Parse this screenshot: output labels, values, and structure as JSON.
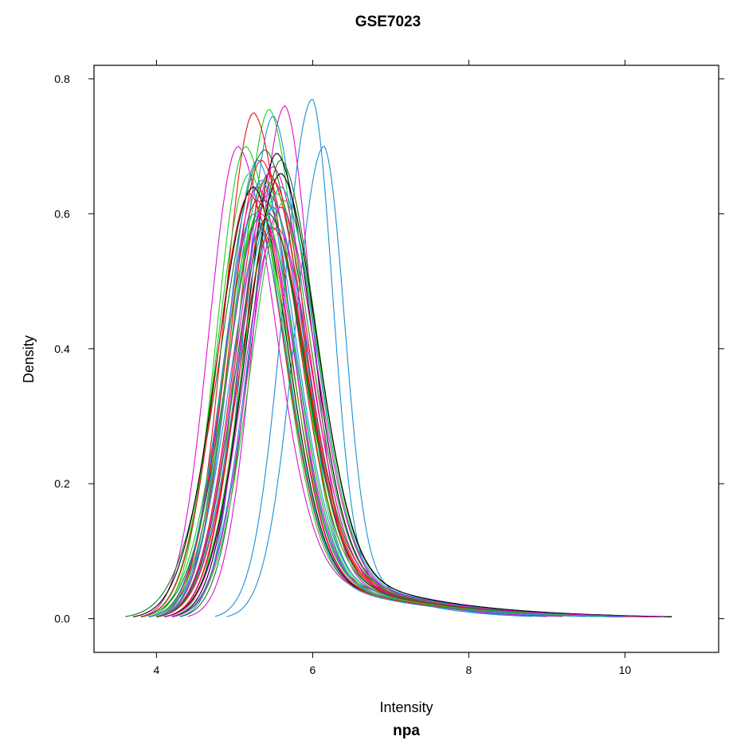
{
  "chart_data": {
    "type": "line",
    "title": "GSE7023",
    "xlabel": "Intensity",
    "ylabel": "Density",
    "sublabel": "npa",
    "xlim": [
      3.2,
      11.2
    ],
    "ylim": [
      -0.05,
      0.82
    ],
    "x_ticks": [
      4,
      6,
      8,
      10
    ],
    "x_tick_labels": [
      "4",
      "6",
      "8",
      "10"
    ],
    "y_ticks": [
      0.0,
      0.2,
      0.4,
      0.6,
      0.8
    ],
    "y_tick_labels": [
      "0.0",
      "0.2",
      "0.4",
      "0.6",
      "0.8"
    ],
    "grid": false,
    "legend": "none",
    "density_series": [
      {
        "color": "#1f8fd6",
        "mode": 6.0,
        "peak": 0.77,
        "start": 4.75,
        "end": 8.8
      },
      {
        "color": "#1f8fd6",
        "mode": 6.15,
        "peak": 0.7,
        "start": 4.9,
        "end": 9.0
      },
      {
        "color": "#e010d0",
        "mode": 5.65,
        "peak": 0.76,
        "start": 4.4,
        "end": 9.2
      },
      {
        "color": "#1f8fd6",
        "mode": 5.5,
        "peak": 0.745,
        "start": 4.3,
        "end": 9.5
      },
      {
        "color": "#22cc22",
        "mode": 5.45,
        "peak": 0.755,
        "start": 4.2,
        "end": 9.6
      },
      {
        "color": "#ee1111",
        "mode": 5.25,
        "peak": 0.75,
        "start": 4.0,
        "end": 10.0
      },
      {
        "color": "#e010d0",
        "mode": 5.05,
        "peak": 0.7,
        "start": 3.8,
        "end": 10.2
      },
      {
        "color": "#22cc22",
        "mode": 5.15,
        "peak": 0.7,
        "start": 3.9,
        "end": 10.0
      },
      {
        "color": "#ee1111",
        "mode": 5.35,
        "peak": 0.68,
        "start": 4.0,
        "end": 10.4
      },
      {
        "color": "#117722",
        "mode": 5.4,
        "peak": 0.695,
        "start": 3.6,
        "end": 10.6
      },
      {
        "color": "#1f8fd6",
        "mode": 5.3,
        "peak": 0.68,
        "start": 4.0,
        "end": 10.0
      },
      {
        "color": "#000000",
        "mode": 5.55,
        "peak": 0.69,
        "start": 4.2,
        "end": 10.3
      },
      {
        "color": "#e010d0",
        "mode": 5.5,
        "peak": 0.67,
        "start": 4.1,
        "end": 10.5
      },
      {
        "color": "#22cc22",
        "mode": 5.2,
        "peak": 0.66,
        "start": 3.8,
        "end": 10.1
      },
      {
        "color": "#ee1111",
        "mode": 5.45,
        "peak": 0.66,
        "start": 4.0,
        "end": 10.4
      },
      {
        "color": "#117722",
        "mode": 5.6,
        "peak": 0.68,
        "start": 4.3,
        "end": 10.5
      },
      {
        "color": "#1f8fd6",
        "mode": 5.35,
        "peak": 0.65,
        "start": 4.0,
        "end": 10.2
      },
      {
        "color": "#e010d0",
        "mode": 5.3,
        "peak": 0.64,
        "start": 3.9,
        "end": 9.9
      },
      {
        "color": "#22cc22",
        "mode": 5.4,
        "peak": 0.65,
        "start": 3.9,
        "end": 10.3
      },
      {
        "color": "#ee1111",
        "mode": 5.5,
        "peak": 0.65,
        "start": 4.1,
        "end": 10.4
      },
      {
        "color": "#000000",
        "mode": 5.25,
        "peak": 0.64,
        "start": 3.7,
        "end": 10.0
      },
      {
        "color": "#1f8fd6",
        "mode": 5.6,
        "peak": 0.64,
        "start": 4.2,
        "end": 10.5
      },
      {
        "color": "#e010d0",
        "mode": 5.45,
        "peak": 0.63,
        "start": 4.0,
        "end": 10.3
      },
      {
        "color": "#22cc22",
        "mode": 5.55,
        "peak": 0.63,
        "start": 4.1,
        "end": 10.4
      },
      {
        "color": "#ee1111",
        "mode": 5.3,
        "peak": 0.62,
        "start": 3.9,
        "end": 10.0
      },
      {
        "color": "#117722",
        "mode": 5.4,
        "peak": 0.62,
        "start": 3.8,
        "end": 10.6
      },
      {
        "color": "#1f8fd6",
        "mode": 5.5,
        "peak": 0.61,
        "start": 4.0,
        "end": 10.2
      },
      {
        "color": "#e010d0",
        "mode": 5.35,
        "peak": 0.6,
        "start": 3.9,
        "end": 10.1
      },
      {
        "color": "#22cc22",
        "mode": 5.65,
        "peak": 0.62,
        "start": 4.2,
        "end": 10.3
      },
      {
        "color": "#ee1111",
        "mode": 5.45,
        "peak": 0.6,
        "start": 4.0,
        "end": 10.5
      },
      {
        "color": "#000000",
        "mode": 5.6,
        "peak": 0.66,
        "start": 4.1,
        "end": 10.6
      },
      {
        "color": "#1f8fd6",
        "mode": 5.4,
        "peak": 0.59,
        "start": 3.9,
        "end": 10.0
      },
      {
        "color": "#e010d0",
        "mode": 5.55,
        "peak": 0.58,
        "start": 4.1,
        "end": 10.4
      },
      {
        "color": "#22cc22",
        "mode": 5.3,
        "peak": 0.59,
        "start": 3.8,
        "end": 10.2
      },
      {
        "color": "#ee1111",
        "mode": 5.5,
        "peak": 0.58,
        "start": 4.0,
        "end": 10.3
      },
      {
        "color": "#117722",
        "mode": 5.45,
        "peak": 0.6,
        "start": 4.0,
        "end": 10.4
      },
      {
        "color": "#ee1111",
        "mode": 5.2,
        "peak": 0.63,
        "start": 3.8,
        "end": 10.1
      },
      {
        "color": "#22cc22",
        "mode": 5.35,
        "peak": 0.61,
        "start": 3.9,
        "end": 10.2
      },
      {
        "color": "#e010d0",
        "mode": 5.6,
        "peak": 0.61,
        "start": 4.2,
        "end": 10.5
      },
      {
        "color": "#1f8fd6",
        "mode": 5.25,
        "peak": 0.6,
        "start": 3.9,
        "end": 10.0
      }
    ]
  }
}
